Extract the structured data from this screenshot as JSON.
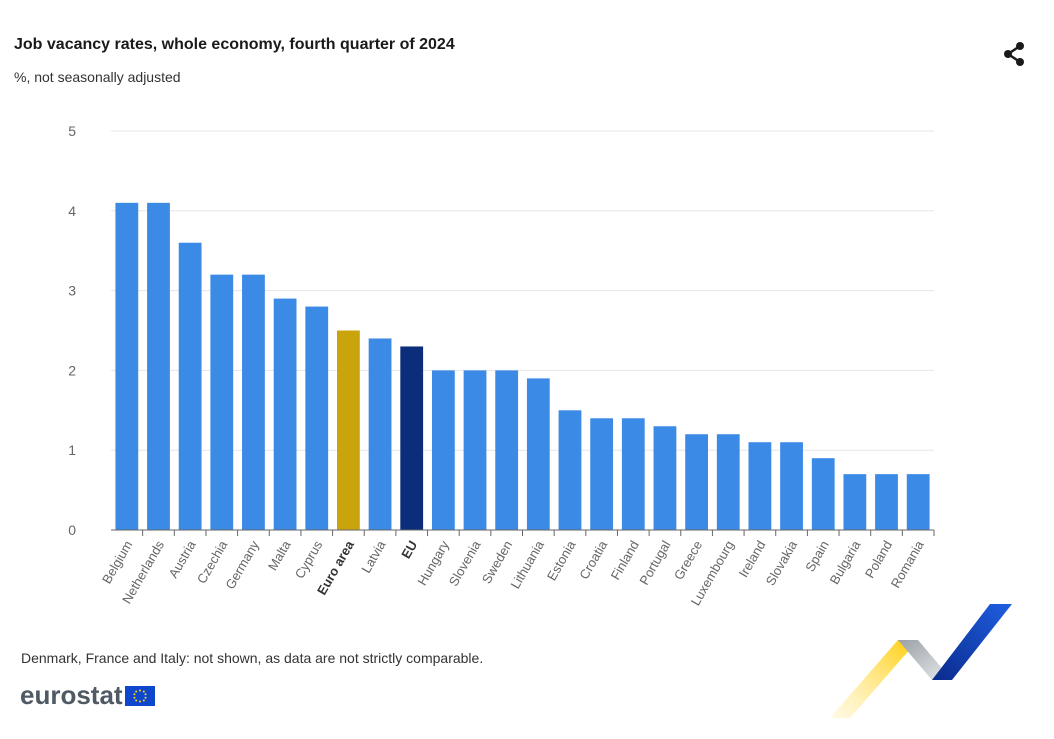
{
  "header": {
    "title": "Job vacancy rates, whole economy, fourth quarter of 2024",
    "subtitle": "%, not seasonally adjusted",
    "share_icon": "share-icon"
  },
  "footer": {
    "note": "Denmark, France and Italy: not shown, as data are not strictly comparable.",
    "logo_text": "eurostat",
    "logo_icon": "eu-flag-icon"
  },
  "colors": {
    "country": "#3b8ae6",
    "euro_area": "#c9a40d",
    "eu": "#0c2d7a",
    "grid": "#e6e6e6",
    "axis": "#666666"
  },
  "chart_data": {
    "type": "bar",
    "title": "Job vacancy rates, whole economy, fourth quarter of 2024",
    "subtitle": "%, not seasonally adjusted",
    "xlabel": "",
    "ylabel": "",
    "ylim": [
      0,
      5
    ],
    "yticks": [
      0,
      1,
      2,
      3,
      4,
      5
    ],
    "grid": true,
    "categories": [
      "Belgium",
      "Netherlands",
      "Austria",
      "Czechia",
      "Germany",
      "Malta",
      "Cyprus",
      "Euro area",
      "Latvia",
      "EU",
      "Hungary",
      "Slovenia",
      "Sweden",
      "Lithuania",
      "Estonia",
      "Croatia",
      "Finland",
      "Portugal",
      "Greece",
      "Luxembourg",
      "Ireland",
      "Slovakia",
      "Spain",
      "Bulgaria",
      "Poland",
      "Romania"
    ],
    "values": [
      4.1,
      4.1,
      3.6,
      3.2,
      3.2,
      2.9,
      2.8,
      2.5,
      2.4,
      2.3,
      2.0,
      2.0,
      2.0,
      1.9,
      1.5,
      1.4,
      1.4,
      1.3,
      1.2,
      1.2,
      1.1,
      1.1,
      0.9,
      0.7,
      0.7,
      0.7
    ],
    "highlight": {
      "Euro area": "euro_area",
      "EU": "eu"
    },
    "bold_labels": [
      "Euro area",
      "EU"
    ]
  }
}
